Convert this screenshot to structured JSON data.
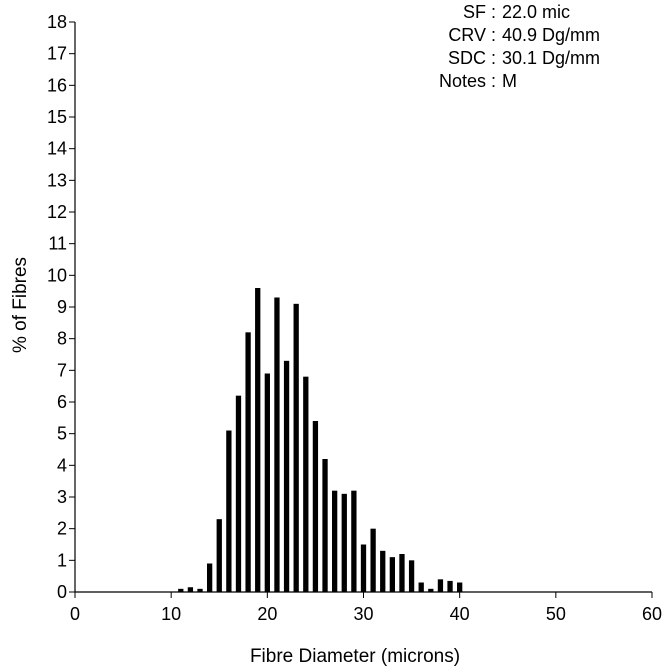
{
  "chart_data": {
    "type": "bar",
    "xlabel": "Fibre Diameter (microns)",
    "ylabel": "% of Fibres",
    "xlim": [
      0,
      60
    ],
    "ylim": [
      0,
      18
    ],
    "x_ticks": [
      0,
      10,
      20,
      30,
      40,
      50,
      60
    ],
    "y_ticks": [
      0,
      1,
      2,
      3,
      4,
      5,
      6,
      7,
      8,
      9,
      10,
      11,
      12,
      13,
      14,
      15,
      16,
      17,
      18
    ],
    "grid": false,
    "bar_color": "#000000",
    "x": [
      11,
      12,
      13,
      14,
      15,
      16,
      17,
      18,
      19,
      20,
      21,
      22,
      23,
      24,
      25,
      26,
      27,
      28,
      29,
      30,
      31,
      32,
      33,
      34,
      35,
      36,
      37,
      38,
      39,
      40
    ],
    "values": [
      0.1,
      0.15,
      0.1,
      0.9,
      2.3,
      5.1,
      6.2,
      8.2,
      9.6,
      6.9,
      9.3,
      7.3,
      9.1,
      6.8,
      5.4,
      4.2,
      3.2,
      3.1,
      3.2,
      1.5,
      2.0,
      1.3,
      1.1,
      1.2,
      1.0,
      0.3,
      0.1,
      0.4,
      0.35,
      0.3
    ]
  },
  "stats": [
    {
      "label": "SF",
      "value": "22.0 mic"
    },
    {
      "label": "CRV",
      "value": "40.9 Dg/mm"
    },
    {
      "label": "SDC",
      "value": "30.1 Dg/mm"
    },
    {
      "label": "Notes",
      "value": "M"
    }
  ]
}
